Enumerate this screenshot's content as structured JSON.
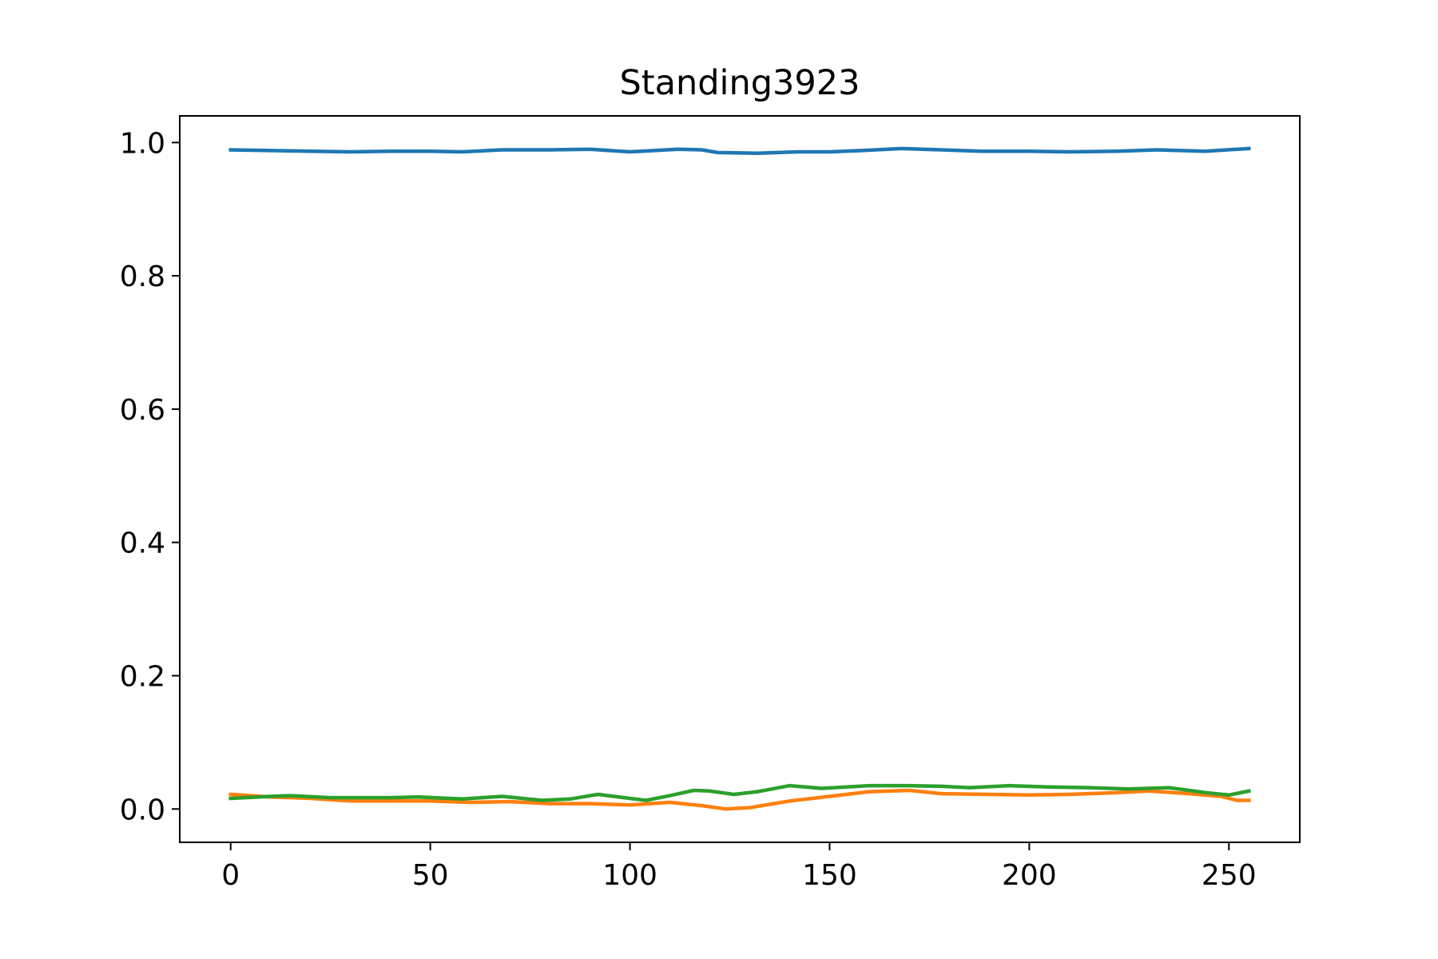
{
  "chart_data": {
    "type": "line",
    "title": "Standing3923",
    "xlabel": "",
    "ylabel": "",
    "xlim": [
      -12.75,
      267.75
    ],
    "ylim": [
      -0.05,
      1.04
    ],
    "x_ticks": [
      0,
      50,
      100,
      150,
      200,
      250
    ],
    "y_ticks": [
      0.0,
      0.2,
      0.4,
      0.6,
      0.8,
      1.0
    ],
    "x_tick_labels": [
      "0",
      "50",
      "100",
      "150",
      "200",
      "250"
    ],
    "y_tick_labels": [
      "0.0",
      "0.2",
      "0.4",
      "0.6",
      "0.8",
      "1.0"
    ],
    "grid": false,
    "legend": "none",
    "series": [
      {
        "color": "#1f77b4",
        "points": [
          [
            0,
            0.989
          ],
          [
            10,
            0.988
          ],
          [
            20,
            0.987
          ],
          [
            30,
            0.986
          ],
          [
            40,
            0.987
          ],
          [
            50,
            0.987
          ],
          [
            58,
            0.986
          ],
          [
            68,
            0.989
          ],
          [
            80,
            0.989
          ],
          [
            90,
            0.99
          ],
          [
            100,
            0.986
          ],
          [
            112,
            0.99
          ],
          [
            118,
            0.989
          ],
          [
            122,
            0.985
          ],
          [
            132,
            0.984
          ],
          [
            142,
            0.986
          ],
          [
            150,
            0.986
          ],
          [
            158,
            0.988
          ],
          [
            168,
            0.991
          ],
          [
            178,
            0.989
          ],
          [
            188,
            0.987
          ],
          [
            200,
            0.987
          ],
          [
            210,
            0.986
          ],
          [
            222,
            0.987
          ],
          [
            232,
            0.989
          ],
          [
            244,
            0.987
          ],
          [
            255,
            0.991
          ]
        ]
      },
      {
        "color": "#ff7f0e",
        "points": [
          [
            0,
            0.022
          ],
          [
            10,
            0.018
          ],
          [
            20,
            0.016
          ],
          [
            30,
            0.012
          ],
          [
            40,
            0.012
          ],
          [
            50,
            0.012
          ],
          [
            60,
            0.01
          ],
          [
            70,
            0.011
          ],
          [
            80,
            0.008
          ],
          [
            90,
            0.008
          ],
          [
            100,
            0.006
          ],
          [
            110,
            0.01
          ],
          [
            118,
            0.005
          ],
          [
            124,
            0.0
          ],
          [
            130,
            0.002
          ],
          [
            140,
            0.012
          ],
          [
            150,
            0.019
          ],
          [
            160,
            0.026
          ],
          [
            170,
            0.028
          ],
          [
            178,
            0.023
          ],
          [
            190,
            0.022
          ],
          [
            200,
            0.021
          ],
          [
            210,
            0.022
          ],
          [
            220,
            0.024
          ],
          [
            230,
            0.027
          ],
          [
            240,
            0.023
          ],
          [
            248,
            0.019
          ],
          [
            252,
            0.013
          ],
          [
            255,
            0.013
          ]
        ]
      },
      {
        "color": "#2ca02c",
        "points": [
          [
            0,
            0.016
          ],
          [
            10,
            0.019
          ],
          [
            15,
            0.02
          ],
          [
            25,
            0.017
          ],
          [
            40,
            0.017
          ],
          [
            47,
            0.018
          ],
          [
            58,
            0.015
          ],
          [
            68,
            0.019
          ],
          [
            78,
            0.013
          ],
          [
            85,
            0.015
          ],
          [
            92,
            0.022
          ],
          [
            100,
            0.016
          ],
          [
            104,
            0.013
          ],
          [
            110,
            0.02
          ],
          [
            116,
            0.028
          ],
          [
            120,
            0.027
          ],
          [
            126,
            0.022
          ],
          [
            132,
            0.026
          ],
          [
            140,
            0.035
          ],
          [
            148,
            0.031
          ],
          [
            160,
            0.035
          ],
          [
            170,
            0.035
          ],
          [
            178,
            0.034
          ],
          [
            185,
            0.032
          ],
          [
            195,
            0.035
          ],
          [
            205,
            0.033
          ],
          [
            215,
            0.032
          ],
          [
            225,
            0.03
          ],
          [
            235,
            0.032
          ],
          [
            245,
            0.024
          ],
          [
            250,
            0.021
          ],
          [
            255,
            0.027
          ]
        ]
      }
    ]
  }
}
